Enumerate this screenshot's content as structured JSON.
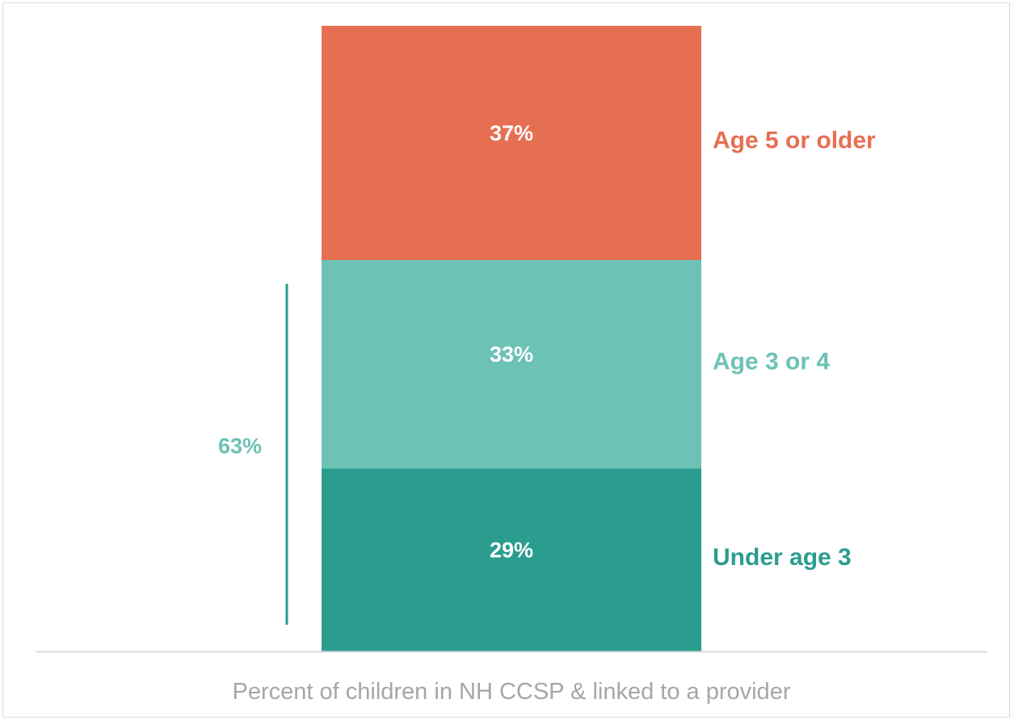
{
  "chart_data": {
    "type": "bar",
    "stacked": true,
    "xlabel": "Percent of children in NH CCSP & linked to a provider",
    "series": [
      {
        "name": "Under age 3",
        "value": 29,
        "label": "29%",
        "color": "#2a9d8f"
      },
      {
        "name": "Age 3 or 4",
        "value": 33,
        "label": "33%",
        "color": "#6cc2b5"
      },
      {
        "name": "Age 5 or older",
        "value": 37,
        "label": "37%",
        "color": "#e76f51"
      }
    ],
    "bracket": {
      "label": "63%",
      "value": 63,
      "spans": [
        "Under age 3",
        "Age 3 or 4"
      ],
      "color": "#6cc2b5",
      "line_color": "#2a9d8f"
    },
    "baseline_color": "#d9d9d9"
  }
}
